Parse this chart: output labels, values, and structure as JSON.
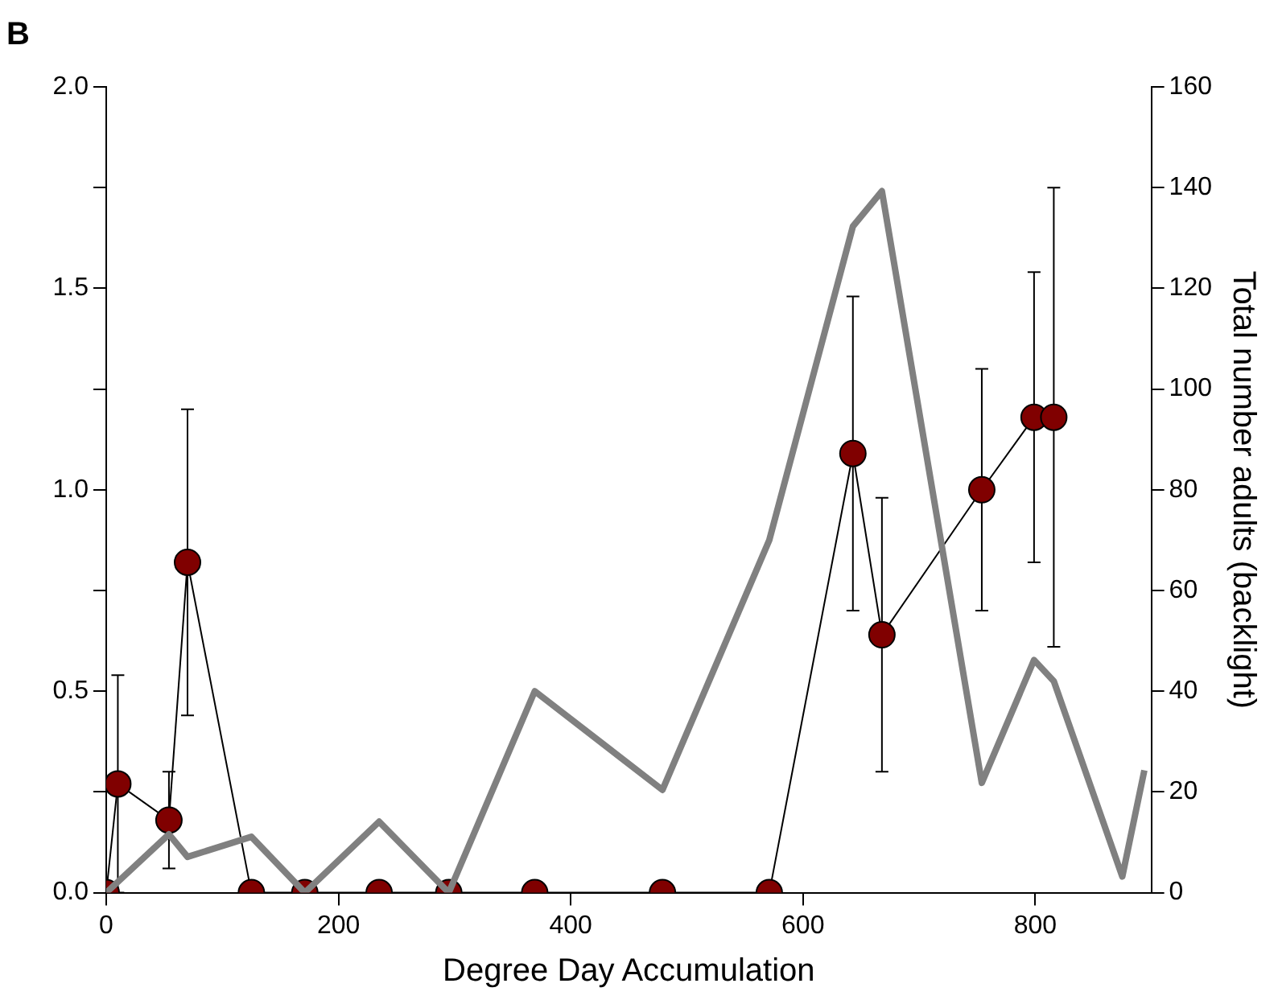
{
  "chart_data": {
    "type": "line",
    "title": "B",
    "xlabel": "Degree Day Accumulation",
    "y2label": "Total number adults (backlight)",
    "xlim": [
      0,
      900
    ],
    "xticks": [
      0,
      200,
      400,
      600,
      800
    ],
    "ylim": [
      0,
      2
    ],
    "yticks": [
      {
        "value": 0,
        "label": "0.0"
      },
      {
        "value": 0.25,
        "label": null
      },
      {
        "value": 0.5,
        "label": "0.5"
      },
      {
        "value": 0.75,
        "label": null
      },
      {
        "value": 1,
        "label": "1.0"
      },
      {
        "value": 1.25,
        "label": null
      },
      {
        "value": 1.5,
        "label": "1.5"
      },
      {
        "value": 1.75,
        "label": null
      },
      {
        "value": 2,
        "label": "2.0"
      }
    ],
    "y2lim": [
      0,
      160
    ],
    "y2ticks": [
      0,
      20,
      40,
      60,
      80,
      100,
      120,
      140,
      160
    ],
    "grid": false,
    "legend": false,
    "series": [
      {
        "type": "line",
        "axis": "y2",
        "color": "#808080",
        "marker": "none",
        "x": [
          0,
          54,
          70,
          125,
          171,
          235,
          295,
          369,
          479,
          571,
          643,
          668,
          754,
          799,
          816,
          875,
          894
        ],
        "values": [
          0,
          11.6,
          7.1,
          11.1,
          0,
          14.1,
          0,
          40,
          20.4,
          70,
          132.3,
          139.3,
          21.8,
          46.2,
          42,
          3.2,
          24.3
        ]
      },
      {
        "type": "line",
        "color": "#800000",
        "marker": "circle",
        "x": [
          0,
          10,
          54,
          70,
          125,
          171,
          235,
          295,
          369,
          479,
          571,
          643,
          668,
          754,
          799,
          816
        ],
        "values": [
          0,
          0.27,
          0.18,
          0.82,
          0,
          0,
          0,
          0,
          0,
          0,
          0,
          1.09,
          0.64,
          1.0,
          1.18,
          1.18
        ],
        "errors": [
          null,
          0.27,
          0.12,
          0.38,
          null,
          null,
          null,
          null,
          null,
          null,
          null,
          0.39,
          0.34,
          0.3,
          0.36,
          0.57
        ]
      }
    ]
  }
}
